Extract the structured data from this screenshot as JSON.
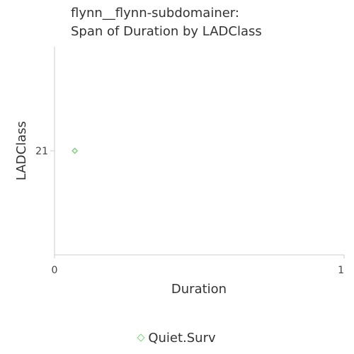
{
  "chart_data": {
    "type": "scatter",
    "title_lines": [
      "flynn__flynn-subdomainer:",
      "Span of Duration by LADClass"
    ],
    "xlabel": "Duration",
    "ylabel": "LADClass",
    "xlim": [
      0,
      1
    ],
    "x_ticks": [
      0,
      1
    ],
    "y_ticks": [
      21
    ],
    "grid": false,
    "legend_placement": "bottom",
    "series": [
      {
        "name": "Quiet.Surv",
        "color": "#7fd17f",
        "marker": "diamond",
        "points": [
          {
            "x": 0.07,
            "y": 21
          }
        ]
      }
    ]
  }
}
